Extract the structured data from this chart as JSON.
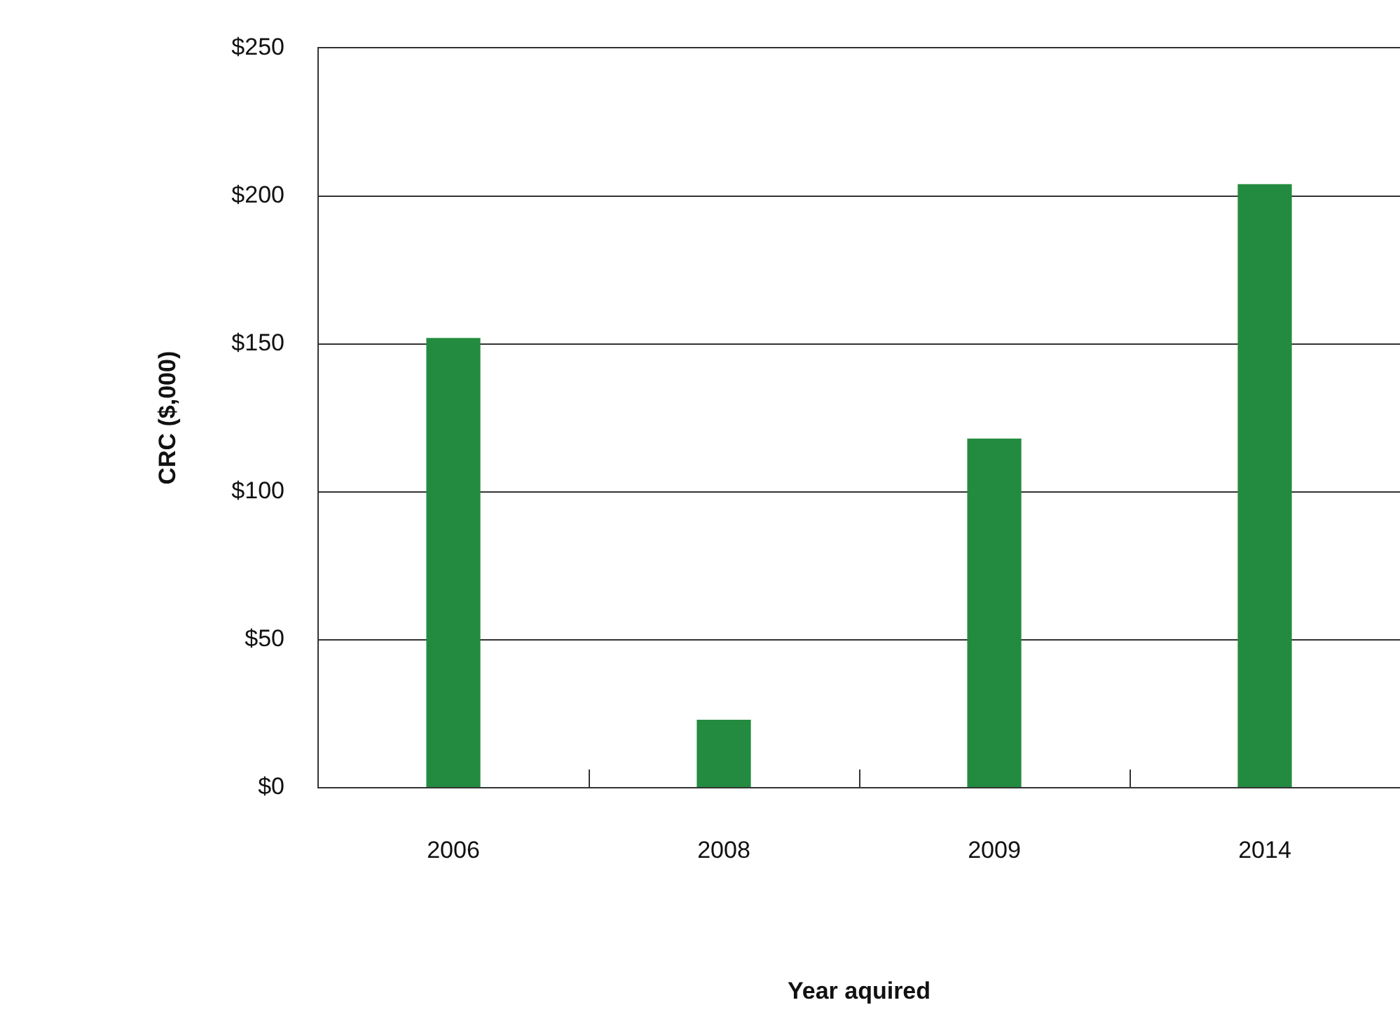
{
  "chart_data": {
    "type": "bar",
    "xlabel": "Year aquired",
    "ylabel": "CRC ($,000)",
    "categories": [
      "2006",
      "2008",
      "2009",
      "2014"
    ],
    "values": [
      152,
      23,
      118,
      204
    ],
    "color": "#238b3f",
    "ylim": [
      0,
      250
    ],
    "yticks": [
      {
        "value": 0,
        "label": "$0"
      },
      {
        "value": 50,
        "label": "$50"
      },
      {
        "value": 100,
        "label": "$100"
      },
      {
        "value": 150,
        "label": "$150"
      },
      {
        "value": 200,
        "label": "$200"
      },
      {
        "value": 250,
        "label": "$250"
      }
    ],
    "grid": "y",
    "legend": false
  }
}
